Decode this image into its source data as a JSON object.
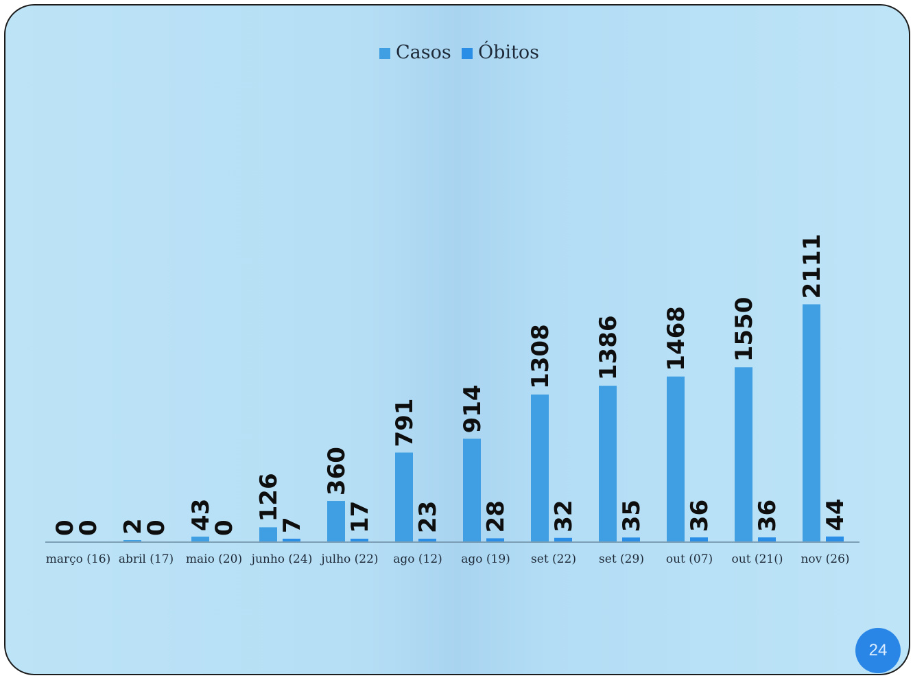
{
  "page_number": "24",
  "chart_data": {
    "type": "bar",
    "title": "",
    "xlabel": "",
    "ylabel": "",
    "legend_position": "top-center",
    "grid": false,
    "ylim": [
      0,
      2400
    ],
    "categories": [
      "março (16)",
      "abril (17)",
      "maio (20)",
      "junho (24)",
      "julho (22)",
      "ago (12)",
      "ago (19)",
      "set (22)",
      "set (29)",
      "out (07)",
      "out (21()",
      "nov (26)"
    ],
    "series": [
      {
        "name": "Casos",
        "color": "#3f9fe2",
        "values": [
          0,
          2,
          43,
          126,
          360,
          791,
          914,
          1308,
          1386,
          1468,
          1550,
          2111
        ]
      },
      {
        "name": "Óbitos",
        "color": "#2b8ee6",
        "values": [
          0,
          0,
          0,
          7,
          17,
          23,
          28,
          32,
          35,
          36,
          36,
          44
        ]
      }
    ]
  }
}
